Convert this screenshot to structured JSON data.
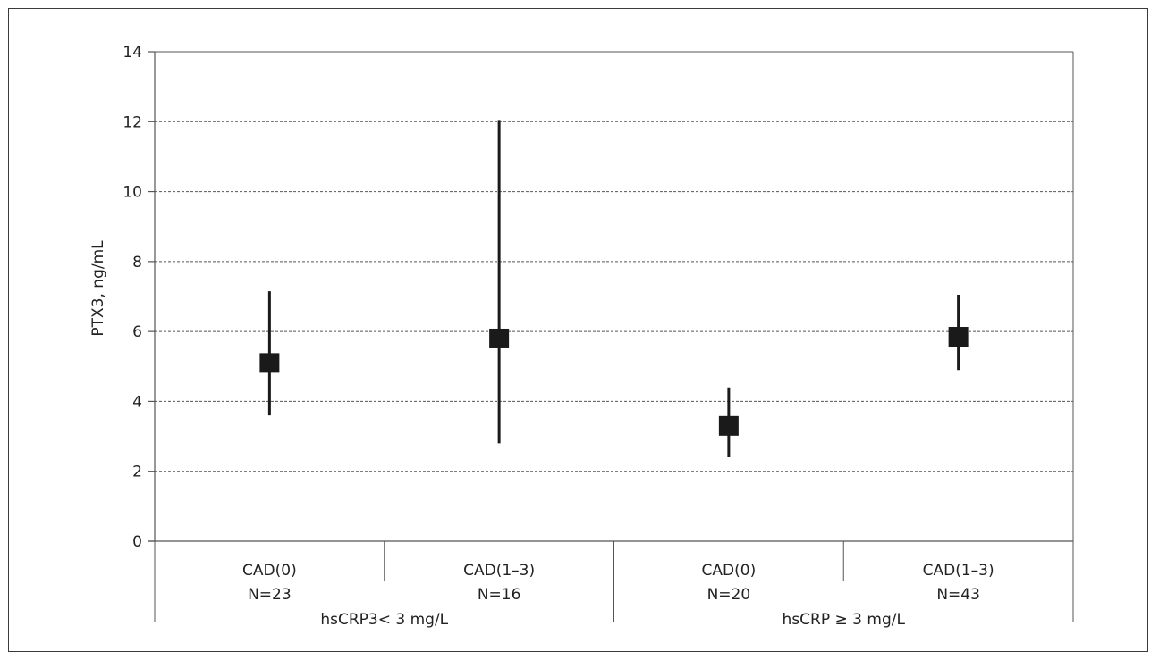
{
  "chart_data": {
    "type": "scatter",
    "title": "",
    "ylabel": "PTX3, ng/mL",
    "xlabel": "",
    "ylim": [
      0,
      14
    ],
    "yticks": [
      0,
      2,
      4,
      6,
      8,
      10,
      12,
      14
    ],
    "grid": true,
    "categories": [
      {
        "label": "CAD(0)",
        "n_label": "N=23"
      },
      {
        "label": "CAD(1–3)",
        "n_label": "N=16"
      },
      {
        "label": "CAD(0)",
        "n_label": "N=20"
      },
      {
        "label": "CAD(1–3)",
        "n_label": "N=43"
      }
    ],
    "groups": [
      {
        "label": "hsCRP3< 3 mg/L",
        "categories": [
          0,
          1
        ]
      },
      {
        "label": "hsCRP ≥ 3 mg/L",
        "categories": [
          2,
          3
        ]
      }
    ],
    "points": [
      {
        "value": 5.1,
        "low": 3.6,
        "high": 7.15
      },
      {
        "value": 5.8,
        "low": 2.8,
        "high": 12.05
      },
      {
        "value": 3.3,
        "low": 2.4,
        "high": 4.4
      },
      {
        "value": 5.85,
        "low": 4.9,
        "high": 7.05
      }
    ],
    "colors": {
      "marker": "#1a1a1a",
      "grid": "#555555",
      "axis": "#555555"
    }
  }
}
